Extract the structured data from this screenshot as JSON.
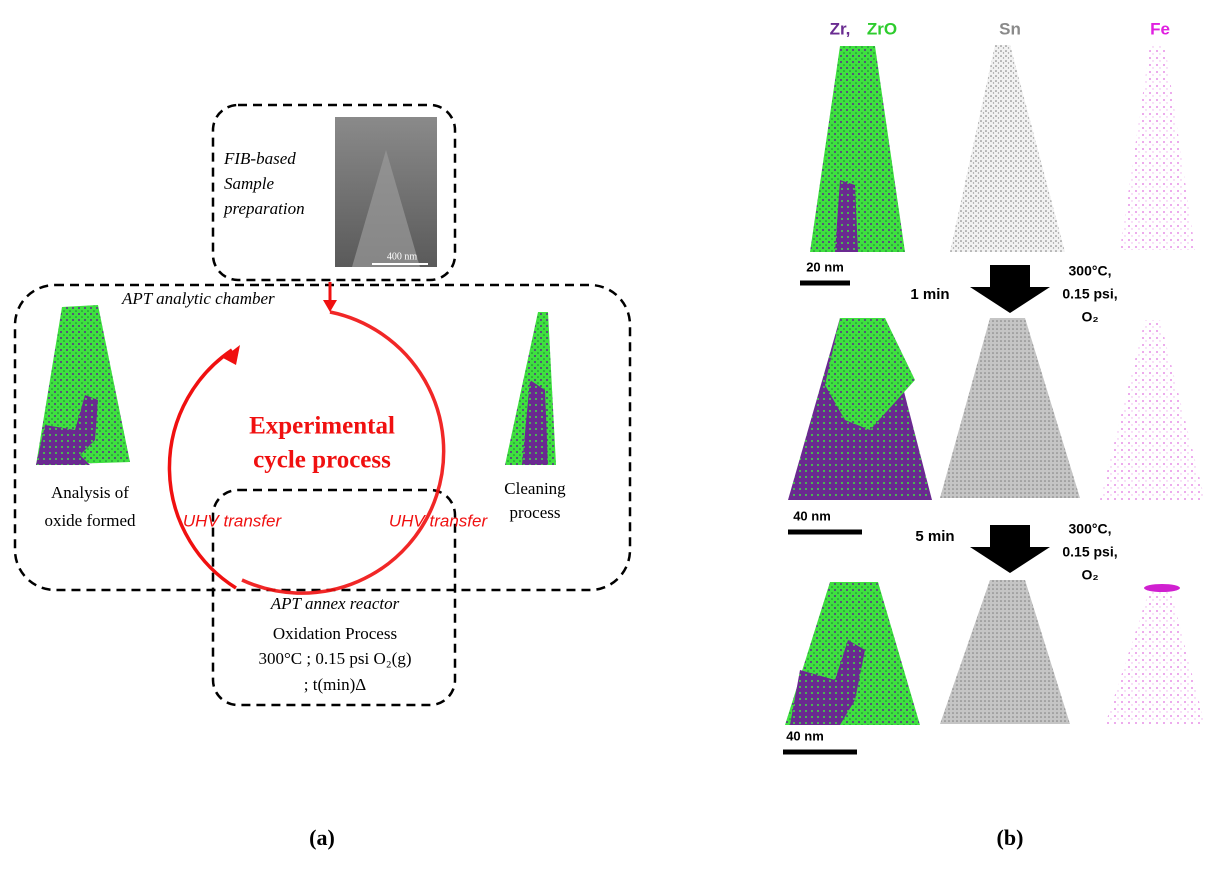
{
  "panel_a": {
    "fib_label": [
      "FIB-based",
      "Sample",
      "preparation"
    ],
    "fib_scale": "400 nm",
    "chamber_label": "APT analytic chamber",
    "cycle_title": [
      "Experimental",
      "cycle process"
    ],
    "left_label": [
      "Analysis of",
      "oxide formed"
    ],
    "right_label": [
      "Cleaning",
      "process"
    ],
    "uhv_left": "UHV transfer",
    "uhv_right": "UHV transfer",
    "reactor_label": "APT annex reactor",
    "oxidation": [
      "Oxidation Process",
      "300°C ; 0.15 psi O₂(g)",
      "; t(min)Δ"
    ],
    "caption": "(a)"
  },
  "panel_b": {
    "headers": [
      "Zr,",
      "ZrO",
      "Sn",
      "Fe"
    ],
    "scales": [
      "20 nm",
      "40 nm",
      "40 nm"
    ],
    "steps": [
      {
        "time": "1 min",
        "conditions": [
          "300°C,",
          "0.15 psi,",
          "O₂"
        ]
      },
      {
        "time": "5 min",
        "conditions": [
          "300°C,",
          "0.15 psi,",
          "O₂"
        ]
      }
    ],
    "caption": "(b)"
  }
}
